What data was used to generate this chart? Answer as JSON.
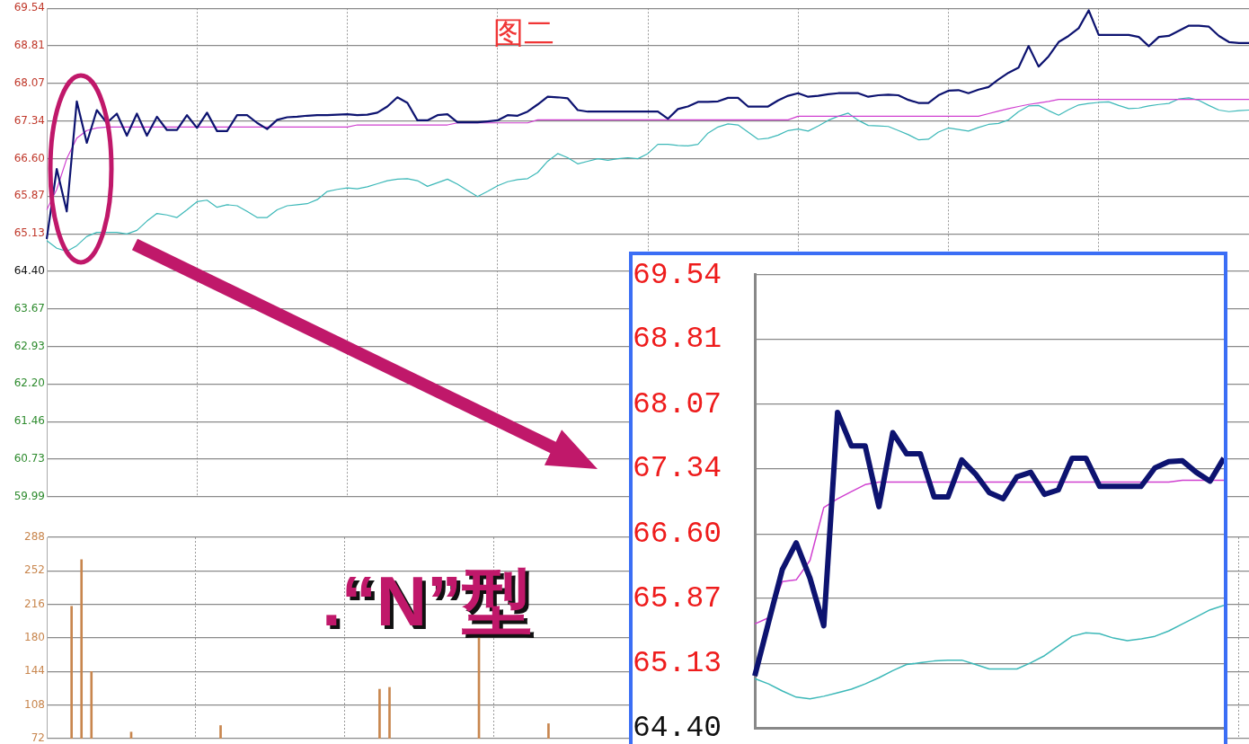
{
  "chart_data": [
    {
      "type": "line",
      "annotations": [
        "图二",
        ".“N”型"
      ],
      "categories": [
        null,
        null,
        null,
        null,
        null,
        null,
        null,
        null,
        null,
        null,
        null,
        null,
        null,
        null,
        null,
        null,
        null,
        null,
        null,
        null,
        null,
        null,
        null,
        null,
        null,
        null,
        null,
        null,
        null,
        null,
        null,
        null,
        null,
        null,
        null,
        null,
        null,
        null,
        null,
        null,
        null,
        null,
        null,
        null,
        null,
        null,
        null,
        null,
        null,
        null,
        null,
        null,
        null,
        null,
        null,
        null,
        null,
        null,
        null,
        null,
        null,
        null,
        null,
        null,
        null,
        null,
        null,
        null,
        null,
        null,
        null,
        null,
        null,
        null,
        null,
        null,
        null,
        null,
        null,
        null,
        null,
        null,
        null,
        null,
        null,
        null,
        null,
        null,
        null,
        null,
        null,
        null,
        null,
        null,
        null,
        null,
        null,
        null,
        null,
        null,
        null,
        null,
        null,
        null,
        null,
        null,
        null,
        null,
        null,
        null,
        null,
        null,
        null,
        null,
        null,
        null,
        null,
        null,
        null,
        null,
        null
      ],
      "ylim": [
        59.99,
        69.54
      ],
      "yticks": [
        59.99,
        60.73,
        61.46,
        {
          "value": 62.2,
          "label": "62.20"
        },
        62.93,
        63.67,
        {
          "value": 64.4,
          "label": "64.40"
        },
        65.13,
        65.87,
        {
          "value": 66.6,
          "label": "66.60"
        },
        67.34,
        68.07,
        68.81,
        69.54
      ],
      "grid": true,
      "tick_labels": "y",
      "series": [
        {
          "color": "#0d1370",
          "values": [
            65.03,
            66.4,
            65.57,
            67.72,
            66.91,
            67.55,
            67.3,
            67.48,
            67.05,
            67.48,
            67.05,
            67.42,
            67.16,
            67.16,
            67.45,
            67.2,
            67.5,
            67.14,
            67.14,
            67.45,
            67.45,
            67.3,
            67.18,
            67.36,
            67.41,
            67.42,
            67.44,
            67.45,
            67.45,
            67.46,
            67.47,
            67.45,
            67.46,
            67.5,
            67.62,
            67.8,
            67.69,
            67.35,
            67.35,
            67.45,
            67.47,
            67.31,
            67.31,
            67.31,
            67.33,
            67.35,
            67.45,
            67.44,
            67.52,
            67.66,
            67.81,
            67.8,
            67.78,
            67.55,
            67.52,
            67.52,
            67.52,
            67.52,
            67.52,
            67.52,
            67.52,
            67.52,
            67.38,
            67.57,
            67.62,
            67.71,
            67.71,
            67.72,
            67.79,
            67.79,
            67.62,
            67.62,
            67.62,
            67.74,
            67.83,
            67.88,
            67.81,
            67.83,
            67.86,
            67.88,
            67.88,
            67.88,
            67.81,
            67.84,
            67.85,
            67.84,
            67.75,
            67.69,
            67.69,
            67.84,
            67.93,
            67.94,
            67.88,
            67.95,
            68.0,
            68.15,
            68.28,
            68.38,
            68.8,
            68.4,
            68.6,
            68.88,
            69.0,
            69.15,
            69.5,
            69.02,
            69.02,
            69.02,
            69.02,
            68.98,
            68.8,
            68.98,
            69.0,
            69.1,
            69.2,
            69.2,
            69.18,
            69.0,
            68.88,
            68.86,
            68.86
          ]
        },
        {
          "color": "#d040d0",
          "values": [
            65.6,
            66.0,
            66.6,
            67.0,
            67.15,
            67.2,
            67.22,
            67.22,
            67.22,
            67.22,
            67.22,
            67.22,
            67.22,
            67.22,
            67.22,
            67.22,
            67.22,
            67.22,
            67.22,
            67.22,
            67.22,
            67.22,
            67.22,
            67.22,
            67.22,
            67.22,
            67.22,
            67.22,
            67.22,
            67.22,
            67.22,
            67.26,
            67.26,
            67.26,
            67.26,
            67.26,
            67.26,
            67.26,
            67.26,
            67.26,
            67.26,
            67.3,
            67.3,
            67.3,
            67.3,
            67.3,
            67.3,
            67.3,
            67.3,
            67.36,
            67.36,
            67.36,
            67.36,
            67.36,
            67.36,
            67.36,
            67.36,
            67.36,
            67.36,
            67.36,
            67.36,
            67.36,
            67.36,
            67.36,
            67.36,
            67.36,
            67.36,
            67.36,
            67.36,
            67.36,
            67.36,
            67.36,
            67.36,
            67.36,
            67.36,
            67.43,
            67.43,
            67.43,
            67.43,
            67.43,
            67.43,
            67.43,
            67.43,
            67.43,
            67.43,
            67.43,
            67.43,
            67.43,
            67.43,
            67.43,
            67.43,
            67.43,
            67.43,
            67.43,
            67.48,
            67.53,
            67.58,
            67.62,
            67.66,
            67.69,
            67.72,
            67.76,
            67.76,
            67.76,
            67.76,
            67.76,
            67.76,
            67.76,
            67.76,
            67.76,
            67.76,
            67.76,
            67.76,
            67.76,
            67.76,
            67.76,
            67.76,
            67.76,
            67.76,
            67.76,
            67.76
          ]
        },
        {
          "color": "#3cb8b8",
          "values": [
            65.0,
            64.85,
            64.79,
            64.9,
            65.08,
            65.16,
            65.16,
            65.16,
            65.13,
            65.2,
            65.38,
            65.53,
            65.5,
            65.45,
            65.6,
            65.76,
            65.79,
            65.65,
            65.7,
            65.68,
            65.57,
            65.45,
            65.45,
            65.6,
            65.68,
            65.7,
            65.72,
            65.8,
            65.96,
            66.0,
            66.03,
            66.01,
            66.05,
            66.11,
            66.17,
            66.2,
            66.21,
            66.17,
            66.06,
            66.13,
            66.2,
            66.1,
            65.98,
            65.86,
            65.96,
            66.07,
            66.15,
            66.19,
            66.21,
            66.33,
            66.55,
            66.7,
            66.62,
            66.5,
            66.55,
            66.6,
            66.57,
            66.6,
            66.62,
            66.6,
            66.7,
            66.88,
            66.88,
            66.86,
            66.85,
            66.88,
            67.1,
            67.22,
            67.28,
            67.26,
            67.12,
            66.98,
            67.0,
            67.06,
            67.15,
            67.18,
            67.14,
            67.24,
            67.35,
            67.43,
            67.49,
            67.35,
            67.25,
            67.24,
            67.23,
            67.15,
            67.07,
            66.97,
            66.98,
            67.12,
            67.2,
            67.17,
            67.14,
            67.21,
            67.27,
            67.29,
            67.36,
            67.52,
            67.63,
            67.64,
            67.54,
            67.45,
            67.56,
            67.65,
            67.68,
            67.7,
            67.71,
            67.64,
            67.58,
            67.59,
            67.63,
            67.66,
            67.68,
            67.77,
            67.79,
            67.74,
            67.64,
            67.55,
            67.52,
            67.54,
            67.55
          ]
        }
      ]
    },
    {
      "type": "bar",
      "categories": [
        null,
        null,
        null,
        null,
        null,
        null,
        null,
        null,
        null,
        null,
        null,
        null,
        null,
        null,
        null,
        null,
        null,
        null,
        null,
        null,
        null,
        null,
        null,
        null,
        null,
        null,
        null,
        null,
        null,
        null,
        null,
        null,
        null,
        null,
        null,
        null,
        null,
        null,
        null,
        null,
        null,
        null,
        null,
        null,
        null,
        null,
        null,
        null,
        null,
        null,
        null,
        null,
        null,
        null,
        null,
        null,
        null,
        null,
        null,
        null,
        null,
        null,
        null,
        null,
        null,
        null,
        null,
        null,
        null,
        null,
        null,
        null,
        null,
        null,
        null,
        null,
        null,
        null,
        null,
        null,
        null,
        null,
        null,
        null,
        null,
        null,
        null,
        null,
        null,
        null,
        null,
        null,
        null,
        null,
        null,
        null,
        null,
        null,
        null,
        null,
        null,
        null,
        null,
        null,
        null,
        null,
        null,
        null,
        null,
        null,
        null,
        null,
        null,
        null,
        null,
        null,
        null,
        null,
        null,
        null,
        null
      ],
      "values": [
        null,
        null,
        214,
        264,
        144,
        null,
        null,
        null,
        79,
        null,
        null,
        null,
        null,
        null,
        null,
        null,
        null,
        86,
        null,
        null,
        null,
        null,
        null,
        null,
        null,
        null,
        null,
        null,
        null,
        null,
        null,
        null,
        null,
        125,
        127,
        null,
        null,
        null,
        null,
        null,
        null,
        null,
        null,
        182,
        null,
        null,
        null,
        null,
        null,
        null,
        88,
        null,
        null,
        null,
        null,
        null,
        null,
        null,
        null,
        null,
        null,
        null,
        null,
        null,
        null,
        null,
        null,
        null,
        null,
        null,
        null,
        null,
        null,
        null,
        null,
        null,
        null,
        null,
        null,
        null,
        null,
        null,
        null,
        null,
        null,
        null,
        null,
        null,
        null,
        null,
        null,
        null,
        null,
        null,
        null,
        null,
        null,
        null,
        null,
        null,
        null,
        null,
        null,
        null,
        null,
        null,
        null,
        null,
        null,
        null,
        null,
        null,
        null,
        null,
        null,
        null,
        null,
        null,
        null,
        null,
        null
      ],
      "color": "#c8864e",
      "ylim": [
        72,
        288
      ],
      "yticks": [
        72,
        108,
        144,
        180,
        216,
        252,
        288
      ],
      "grid": true,
      "tick_labels": "y"
    },
    {
      "type": "line",
      "categories": [
        null,
        null,
        null,
        null,
        null,
        null,
        null,
        null,
        null,
        null,
        null,
        null,
        null,
        null,
        null,
        null,
        null,
        null,
        null,
        null,
        null,
        null,
        null,
        null,
        null,
        null,
        null,
        null,
        null,
        null,
        null,
        null,
        null,
        null,
        null
      ],
      "ylim": [
        64.4,
        69.54
      ],
      "yticks": [
        {
          "value": 64.4,
          "label": "64.40"
        },
        65.13,
        65.87,
        {
          "value": 66.6,
          "label": "66.60"
        },
        67.34,
        68.07,
        68.81,
        69.54
      ],
      "grid": "y",
      "tick_labels": "y",
      "series": [
        {
          "color": "#0d1370",
          "values": [
            64.99,
            65.6,
            66.2,
            66.5,
            66.1,
            65.56,
            67.98,
            67.6,
            67.6,
            66.91,
            67.75,
            67.51,
            67.51,
            67.02,
            67.02,
            67.44,
            67.28,
            67.07,
            67.0,
            67.25,
            67.3,
            67.05,
            67.1,
            67.46,
            67.46,
            67.14,
            67.14,
            67.14,
            67.14,
            67.35,
            67.42,
            67.43,
            67.3,
            67.2,
            67.46
          ]
        },
        {
          "color": "#d040d0",
          "values": [
            65.58,
            65.65,
            66.06,
            66.08,
            66.3,
            66.9,
            67.0,
            67.08,
            67.16,
            67.19,
            67.19,
            67.19,
            67.19,
            67.19,
            67.19,
            67.19,
            67.19,
            67.19,
            67.19,
            67.19,
            67.19,
            67.19,
            67.19,
            67.19,
            67.19,
            67.19,
            67.19,
            67.19,
            67.19,
            67.19,
            67.19,
            67.21,
            67.21,
            67.21,
            67.21
          ]
        },
        {
          "color": "#3cb8b8",
          "values": [
            64.96,
            64.9,
            64.82,
            64.75,
            64.73,
            64.76,
            64.8,
            64.84,
            64.9,
            64.97,
            65.05,
            65.12,
            65.14,
            65.16,
            65.17,
            65.17,
            65.12,
            65.07,
            65.07,
            65.07,
            65.14,
            65.22,
            65.33,
            65.44,
            65.48,
            65.47,
            65.42,
            65.39,
            65.41,
            65.44,
            65.5,
            65.58,
            65.66,
            65.74,
            65.79
          ]
        }
      ]
    }
  ]
}
